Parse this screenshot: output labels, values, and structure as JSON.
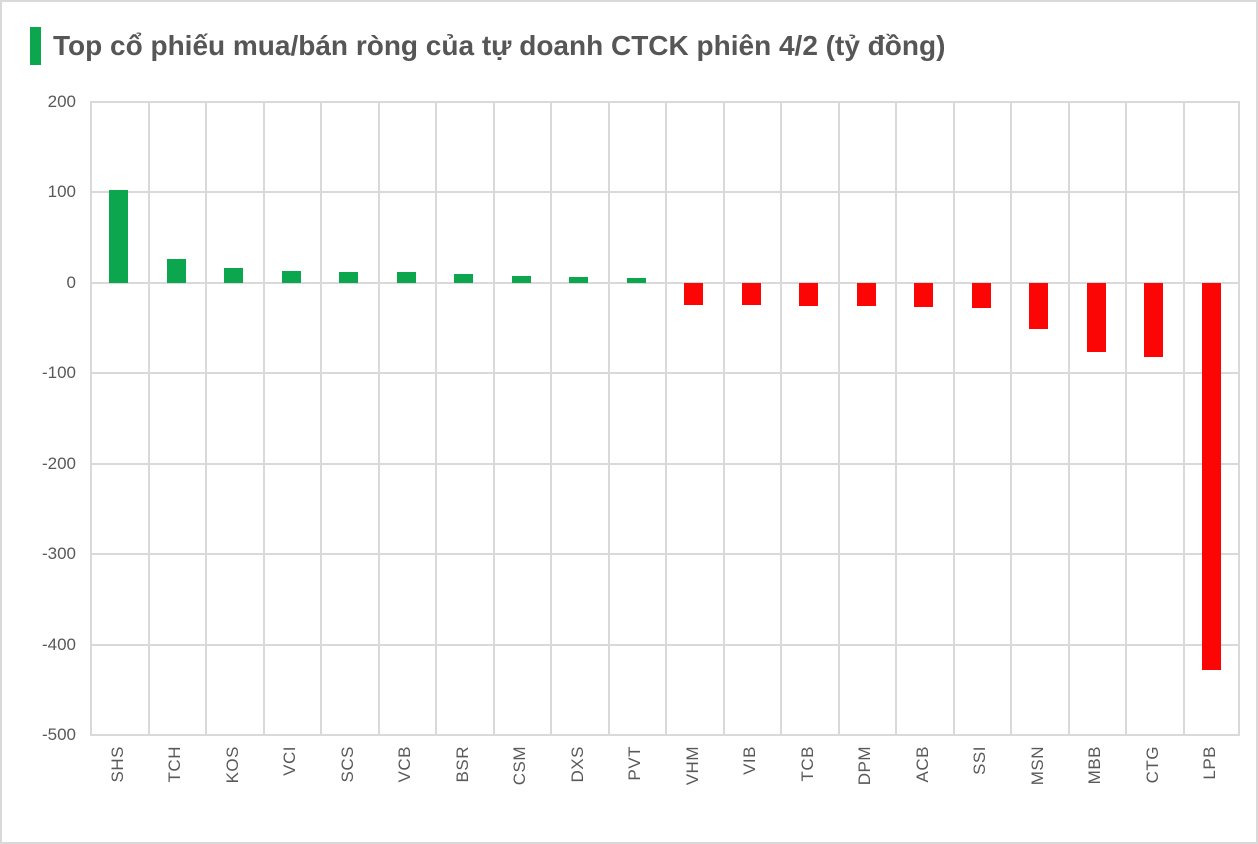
{
  "header": {
    "title": "Top cổ phiếu mua/bán ròng của tự doanh CTCK phiên 4/2 (tỷ đồng)"
  },
  "colors": {
    "positive": "#0ca64f",
    "negative": "#fb0505",
    "accent": "#0ca64f",
    "grid": "#d9d9d9",
    "axis_text": "#595959",
    "title_text": "#565656"
  },
  "chart_data": {
    "type": "bar",
    "title": "Top cổ phiếu mua/bán ròng của tự doanh CTCK phiên 4/2 (tỷ đồng)",
    "categories": [
      "SHS",
      "TCH",
      "KOS",
      "VCI",
      "SCS",
      "VCB",
      "BSR",
      "CSM",
      "DXS",
      "PVT",
      "VHM",
      "VIB",
      "TCB",
      "DPM",
      "ACB",
      "SSI",
      "MSN",
      "MBB",
      "CTG",
      "LPB"
    ],
    "values": [
      103,
      26,
      16,
      13,
      12,
      12,
      10,
      8,
      6,
      5,
      -24,
      -25,
      -26,
      -26,
      -27,
      -28,
      -51,
      -77,
      -82,
      -428
    ],
    "xlabel": "",
    "ylabel": "",
    "ylim": [
      -500,
      200
    ],
    "yticks": [
      200,
      100,
      0,
      -100,
      -200,
      -300,
      -400,
      -500
    ],
    "grid": "both",
    "legend_position": "none",
    "positive_color": "#0ca64f",
    "negative_color": "#fb0505",
    "x_tick_rotation_deg": 90
  }
}
